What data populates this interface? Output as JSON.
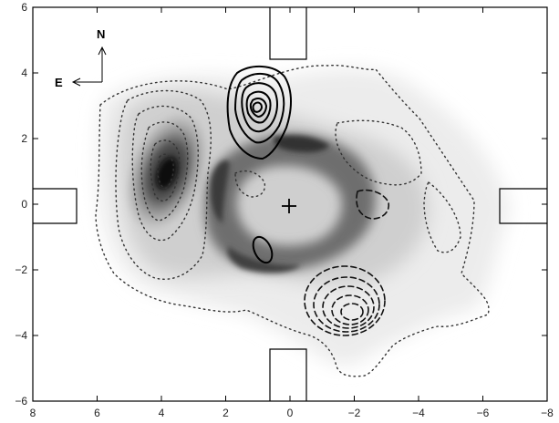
{
  "figure": {
    "compass": {
      "north_label": "N",
      "east_label": "E"
    },
    "axes": {
      "x_ticks": [
        "8",
        "6",
        "4",
        "2",
        "0",
        "−2",
        "−4",
        "−6",
        "−8"
      ],
      "y_ticks": [
        "6",
        "4",
        "2",
        "0",
        "−2",
        "−4",
        "−6"
      ],
      "xlim": [
        8,
        -8
      ],
      "ylim": [
        -6,
        6
      ]
    },
    "colors": {
      "frame": "#000000",
      "greyscale_dark": "#2a2a2a",
      "greyscale_light": "#e6e6e6",
      "contour_solid": "#000000",
      "contour_dotted": "#333333",
      "contour_dashed": "#111111"
    },
    "features": {
      "center_marker": "plus-marker",
      "solid_contour_peak": [
        1.1,
        3.0
      ],
      "dashed_contour_peak": [
        -1.6,
        -3.3
      ],
      "bright_greyscale_peak": [
        3.7,
        0.9
      ]
    }
  }
}
